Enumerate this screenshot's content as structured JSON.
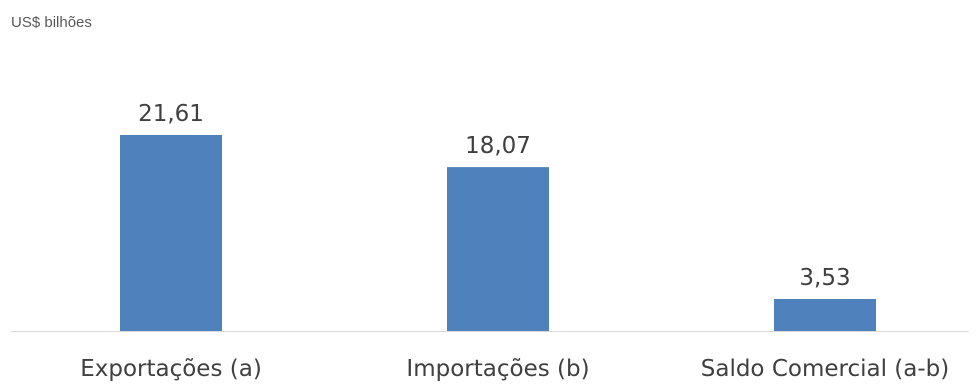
{
  "chart_data": {
    "type": "bar",
    "unit_label": "US$ bilhões",
    "categories": [
      "Exportações (a)",
      "Importações (b)",
      "Saldo Comercial (a-b)"
    ],
    "values": [
      21.61,
      18.07,
      3.53
    ],
    "data_labels": [
      "21,61",
      "18,07",
      "3,53"
    ],
    "title": "",
    "xlabel": "",
    "ylabel": "",
    "ylim": [
      0,
      30
    ],
    "grid": false,
    "legend": "none",
    "bar_color": "#4F81BD",
    "axis_color": "#D9D9D9",
    "text_color": "#404040"
  }
}
